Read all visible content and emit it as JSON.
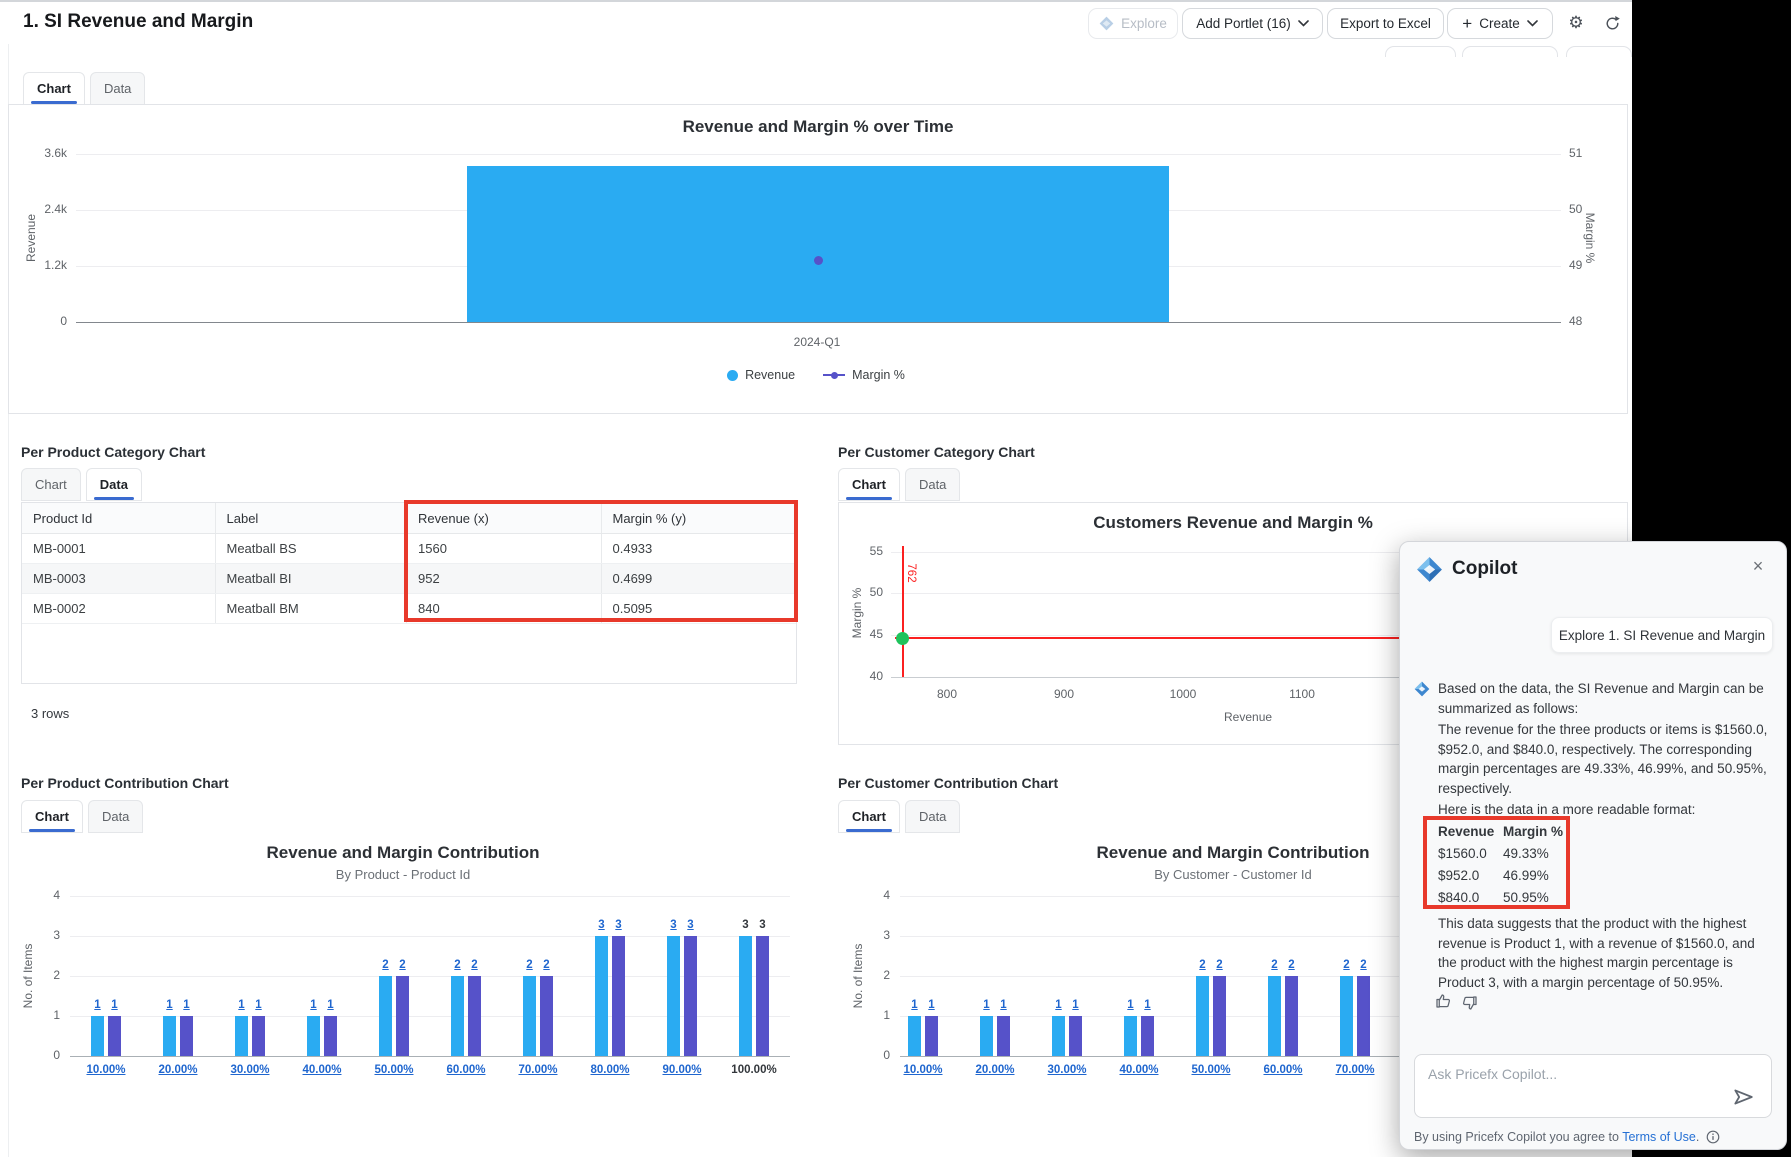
{
  "colors": {
    "bar_blue": "#2aabf2",
    "bar_purple": "#5652c9",
    "accent_blue": "#3a6bd0",
    "link_blue": "#1f66cf",
    "annotation_red": "#e8392b",
    "crosshair_red": "#fb2020",
    "point_green": "#1fc35c"
  },
  "header": {
    "title": "1. SI Revenue and Margin",
    "explore_label": "Explore",
    "add_portlet_label": "Add Portlet (16)",
    "export_label": "Export to Excel",
    "create_label": "Create"
  },
  "main_portlet": {
    "tabs": [
      "Chart",
      "Data"
    ],
    "active_index": 0,
    "chart_data": {
      "type": "bar",
      "title": "Revenue and Margin % over Time",
      "categories": [
        "2024-Q1"
      ],
      "series": [
        {
          "name": "Revenue",
          "type": "bar",
          "values": [
            3352
          ],
          "axis": "left"
        },
        {
          "name": "Margin %",
          "type": "point",
          "values": [
            49.1
          ],
          "axis": "right"
        }
      ],
      "left_axis": {
        "label": "Revenue",
        "ticks": [
          "3.6k",
          "2.4k",
          "1.2k",
          "0"
        ],
        "max": 3600
      },
      "right_axis": {
        "label": "Margin %",
        "ticks": [
          "51",
          "50",
          "49",
          "48"
        ],
        "min": 48,
        "max": 51
      },
      "legend": [
        "Revenue",
        "Margin %"
      ],
      "legend_position": "bottom"
    }
  },
  "product_category": {
    "heading": "Per Product Category Chart",
    "tabs": [
      "Chart",
      "Data"
    ],
    "active_index": 1,
    "table": {
      "columns": [
        "Product Id",
        "Label",
        "Revenue (x)",
        "Margin % (y)"
      ],
      "rows": [
        [
          "MB-0001",
          "Meatball BS",
          "1560",
          "0.4933"
        ],
        [
          "MB-0003",
          "Meatball BI",
          "952",
          "0.4699"
        ],
        [
          "MB-0002",
          "Meatball BM",
          "840",
          "0.5095"
        ]
      ],
      "highlighted_columns": [
        "Revenue (x)",
        "Margin % (y)"
      ]
    },
    "row_count_label": "3 rows"
  },
  "customer_category": {
    "heading": "Per Customer Category Chart",
    "tabs": [
      "Chart",
      "Data"
    ],
    "active_index": 0,
    "chart_data": {
      "type": "scatter",
      "title": "Customers Revenue and Margin %",
      "xlabel": "Revenue",
      "ylabel": "Margin %",
      "x_ticks": [
        "800",
        "900",
        "1000",
        "1100"
      ],
      "y_ticks": [
        "55",
        "50",
        "45",
        "40"
      ],
      "points": [
        {
          "x": 762,
          "y": 44.6,
          "x_label": "762",
          "color": "green",
          "crosshair": true
        }
      ]
    }
  },
  "product_contribution": {
    "heading": "Per Product Contribution Chart",
    "tabs": [
      "Chart",
      "Data"
    ],
    "active_index": 0,
    "chart_data": {
      "type": "bar",
      "title": "Revenue and Margin Contribution",
      "subtitle": "By Product - Product Id",
      "ylabel": "No. of Items",
      "y_ticks": [
        "4",
        "3",
        "2",
        "1",
        "0"
      ],
      "categories": [
        "10.00%",
        "20.00%",
        "30.00%",
        "40.00%",
        "50.00%",
        "60.00%",
        "70.00%",
        "80.00%",
        "90.00%",
        "100.00%"
      ],
      "category_is_link": [
        true,
        true,
        true,
        true,
        true,
        true,
        true,
        true,
        true,
        false
      ],
      "series": [
        {
          "name": "Revenue",
          "values": [
            1,
            1,
            1,
            1,
            2,
            2,
            2,
            3,
            3,
            3
          ]
        },
        {
          "name": "Margin %",
          "values": [
            1,
            1,
            1,
            1,
            2,
            2,
            2,
            3,
            3,
            3
          ]
        }
      ],
      "ylim": [
        0,
        4
      ]
    }
  },
  "customer_contribution": {
    "heading": "Per Customer Contribution Chart",
    "tabs": [
      "Chart",
      "Data"
    ],
    "active_index": 0,
    "chart_data": {
      "type": "bar",
      "title": "Revenue and Margin Contribution",
      "subtitle": "By Customer - Customer Id",
      "ylabel": "No. of Items",
      "y_ticks": [
        "4",
        "3",
        "2",
        "1",
        "0"
      ],
      "categories": [
        "10.00%",
        "20.00%",
        "30.00%",
        "40.00%",
        "50.00%",
        "60.00%",
        "70.00%"
      ],
      "category_is_link": [
        true,
        true,
        true,
        true,
        true,
        true,
        true
      ],
      "series": [
        {
          "name": "Revenue",
          "values": [
            1,
            1,
            1,
            1,
            2,
            2,
            2
          ]
        },
        {
          "name": "Margin %",
          "values": [
            1,
            1,
            1,
            1,
            2,
            2,
            2
          ]
        }
      ],
      "ylim": [
        0,
        4
      ]
    }
  },
  "copilot": {
    "title": "Copilot",
    "suggestion_label": "Explore 1. SI Revenue and Margin",
    "message": {
      "p1": "Based on the data, the SI Revenue and Margin can be summarized as follows:",
      "p2": "The revenue for the three products or items is $1560.0, $952.0, and $840.0, respectively. The corresponding margin percentages are 49.33%, 46.99%, and 50.95%, respectively.",
      "p3": "Here is the data in a more readable format:",
      "table": {
        "columns": [
          "Revenue",
          "Margin %"
        ],
        "rows": [
          [
            "$1560.0",
            "49.33%"
          ],
          [
            "$952.0",
            "46.99%"
          ],
          [
            "$840.0",
            "50.95%"
          ]
        ]
      },
      "p4": "This data suggests that the product with the highest revenue is Product 1, with a revenue of $1560.0, and the product with the highest margin percentage is Product 3, with a margin percentage of 50.95%."
    },
    "input_placeholder": "Ask Pricefx Copilot...",
    "footer_text": "By using Pricefx Copilot you agree to ",
    "footer_link": "Terms of Use",
    "footer_suffix": "."
  }
}
